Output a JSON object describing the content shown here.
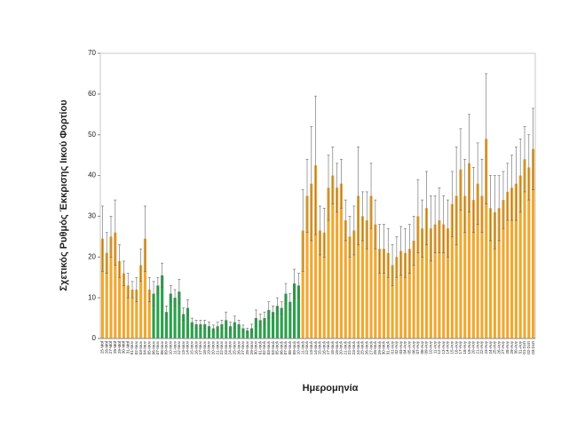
{
  "chart_data": {
    "type": "bar",
    "x_label": "Ημερομηνία",
    "y_label": "Σχετικός Ρυθμός Έκκρισης Ιικού Φορτίου",
    "categories": [
      "25-Μαΐ",
      "26-Μαΐ",
      "27-Μαΐ",
      "28-Μαΐ",
      "29-Μαΐ",
      "30-Μαΐ",
      "31-Μαΐ",
      "01-Ιουν",
      "02-Ιουν",
      "03-Ιουν",
      "04-Ιουν",
      "05-Ιουν",
      "06-Ιουν",
      "07-Ιουν",
      "08-Ιουν",
      "09-Ιουν",
      "10-Ιουν",
      "11-Ιουν",
      "12-Ιουν",
      "13-Ιουν",
      "14-Ιουν",
      "15-Ιουν",
      "16-Ιουν",
      "17-Ιουν",
      "18-Ιουν",
      "19-Ιουν",
      "20-Ιουν",
      "21-Ιουν",
      "22-Ιουν",
      "23-Ιουν",
      "24-Ιουν",
      "25-Ιουν",
      "26-Ιουν",
      "27-Ιουν",
      "28-Ιουν",
      "29-Ιουν",
      "30-Ιουν",
      "01-Ιουλ",
      "02-Ιουλ",
      "03-Ιουλ",
      "04-Ιουλ",
      "05-Ιουλ",
      "06-Ιουλ",
      "07-Ιουλ",
      "08-Ιουλ",
      "09-Ιουλ",
      "10-Ιουλ",
      "11-Ιουλ",
      "12-Ιουλ",
      "13-Ιουλ",
      "14-Ιουλ",
      "15-Ιουλ",
      "16-Ιουλ",
      "17-Ιουλ",
      "18-Ιουλ",
      "19-Ιουλ",
      "20-Ιουλ",
      "21-Ιουλ",
      "22-Ιουλ",
      "23-Ιουλ",
      "24-Ιουλ",
      "25-Ιουλ",
      "26-Ιουλ",
      "27-Ιουλ",
      "28-Ιουλ",
      "29-Ιουλ",
      "30-Ιουλ",
      "31-Ιουλ",
      "01-Αυγ",
      "02-Αυγ",
      "03-Αυγ",
      "04-Αυγ",
      "05-Αυγ",
      "06-Αυγ",
      "07-Αυγ",
      "08-Αυγ",
      "09-Αυγ",
      "10-Αυγ",
      "11-Αυγ",
      "12-Αυγ",
      "13-Αυγ",
      "14-Αυγ",
      "15-Αυγ",
      "16-Αυγ",
      "17-Αυγ",
      "18-Αυγ",
      "19-Αυγ",
      "20-Αυγ",
      "21-Αυγ",
      "22-Αυγ",
      "23-Αυγ",
      "24-Αυγ",
      "25-Αυγ",
      "26-Αυγ",
      "27-Αυγ",
      "28-Αυγ",
      "29-Αυγ",
      "30-Αυγ",
      "31-Αυγ",
      "01-Σεπ",
      "02-Σεπ",
      "03-Σεπ"
    ],
    "values": [
      24.5,
      21,
      25,
      26,
      19,
      16,
      13,
      12,
      12,
      18,
      24.5,
      12,
      11,
      13,
      15.5,
      6.5,
      11,
      10,
      11.5,
      6,
      7.5,
      4,
      3.5,
      3.5,
      3.5,
      3,
      2.5,
      3,
      3.5,
      4.5,
      3,
      4,
      3.5,
      2.5,
      2,
      2.5,
      5,
      4.5,
      5,
      7,
      6.5,
      8,
      7.5,
      11,
      9,
      13.5,
      13,
      26.5,
      35,
      38,
      42.5,
      26.5,
      26,
      37,
      40,
      37,
      38,
      29,
      25,
      26.5,
      35,
      30,
      29,
      35,
      28,
      22,
      22,
      21,
      18,
      20,
      21.5,
      21,
      22,
      24,
      30,
      27,
      32,
      27,
      28,
      29,
      28,
      27,
      33,
      35,
      41.5,
      35,
      43,
      34,
      38,
      35,
      49,
      32,
      31,
      32,
      34,
      36,
      37,
      38,
      40,
      44,
      42,
      46.5
    ],
    "errors": [
      8,
      5,
      5,
      8,
      4,
      3,
      3,
      2,
      3,
      4,
      8,
      3,
      3,
      2,
      3,
      1.5,
      2,
      2,
      3,
      1.5,
      2,
      1,
      1,
      1,
      1,
      1,
      0.8,
      1,
      1,
      2,
      1,
      1.5,
      1,
      0.8,
      0.5,
      1,
      2,
      1.5,
      1.5,
      2,
      1.5,
      2,
      1.5,
      2.5,
      2,
      3.5,
      3,
      10,
      9,
      14,
      17,
      6,
      6,
      8,
      7,
      6,
      6,
      5,
      5,
      6,
      12,
      6,
      7,
      8,
      6,
      6,
      6,
      6,
      5,
      5,
      6,
      6,
      6,
      6,
      9,
      7,
      9,
      8,
      7,
      8,
      7,
      7,
      8,
      12,
      10,
      9,
      12,
      8,
      10,
      9,
      16,
      8,
      9,
      8,
      7,
      7,
      8,
      9,
      9,
      8,
      8,
      10
    ],
    "colors": [
      "#f0a830",
      "#f0a830",
      "#f0a830",
      "#f0a830",
      "#f0a830",
      "#f0a830",
      "#f0a830",
      "#f0a830",
      "#f0a830",
      "#f0a830",
      "#f0a830",
      "#f0a830",
      "#2ca04c",
      "#2ca04c",
      "#2ca04c",
      "#2ca04c",
      "#2ca04c",
      "#2ca04c",
      "#2ca04c",
      "#2ca04c",
      "#2ca04c",
      "#2ca04c",
      "#2ca04c",
      "#2ca04c",
      "#2ca04c",
      "#2ca04c",
      "#2ca04c",
      "#2ca04c",
      "#2ca04c",
      "#2ca04c",
      "#2ca04c",
      "#2ca04c",
      "#2ca04c",
      "#2ca04c",
      "#2ca04c",
      "#2ca04c",
      "#2ca04c",
      "#2ca04c",
      "#2ca04c",
      "#2ca04c",
      "#2ca04c",
      "#2ca04c",
      "#2ca04c",
      "#2ca04c",
      "#2ca04c",
      "#2ca04c",
      "#2ca04c",
      "#f0a830",
      "#f0a830",
      "#f0a830",
      "#f0a830",
      "#f0a830",
      "#f0a830",
      "#f0a830",
      "#f0a830",
      "#f0a830",
      "#f0a830",
      "#f0a830",
      "#f0a830",
      "#f0a830",
      "#f0a830",
      "#f0a830",
      "#f0a830",
      "#f0a830",
      "#f0a830",
      "#f0a830",
      "#f0a830",
      "#f0a830",
      "#f0a830",
      "#f0a830",
      "#f0a830",
      "#f0a830",
      "#f0a830",
      "#f0a830",
      "#f0a830",
      "#f0a830",
      "#f0a830",
      "#f0a830",
      "#f0a830",
      "#f0a830",
      "#f0a830",
      "#f0a830",
      "#f0a830",
      "#f0a830",
      "#f0a830",
      "#f0a830",
      "#f0a830",
      "#f0a830",
      "#f0a830",
      "#f0a830",
      "#f0a830",
      "#f0a830",
      "#f0a830",
      "#f0a830",
      "#f0a830",
      "#f0a830",
      "#f0a830",
      "#f0a830",
      "#f0a830",
      "#f0a830",
      "#f0a830",
      "#f0a830"
    ],
    "ylim": [
      0,
      70
    ],
    "yticks": [
      0,
      10,
      20,
      30,
      40,
      50,
      60,
      70
    ],
    "grid": false
  }
}
